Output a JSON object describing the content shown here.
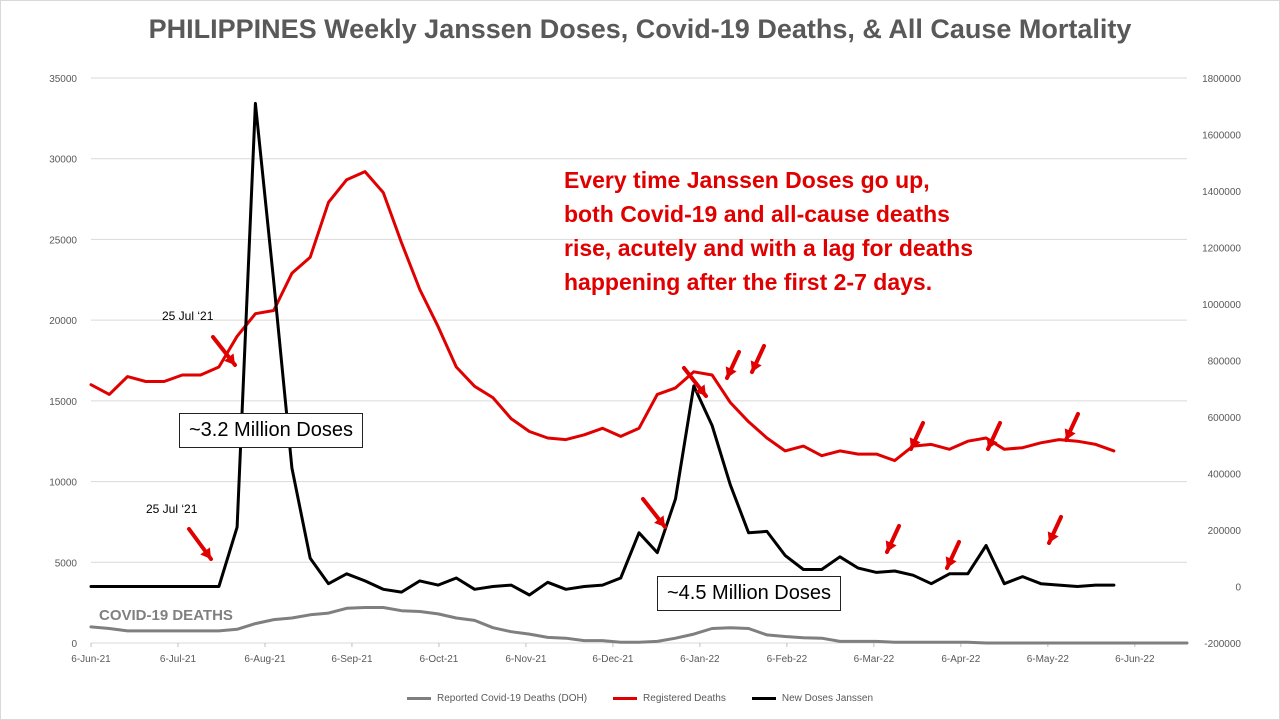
{
  "chart_data": {
    "type": "line",
    "title": "PHILIPPINES Weekly Janssen Doses, Covid-19 Deaths, & All Cause Mortality",
    "y_left": {
      "lim": [
        0,
        35000
      ],
      "ticks": [
        "0",
        "5000",
        "10000",
        "15000",
        "20000",
        "25000",
        "30000",
        "35000"
      ]
    },
    "y_right": {
      "lim": [
        -200000,
        1800000
      ],
      "ticks": [
        "-200000",
        "0",
        "200000",
        "400000",
        "600000",
        "800000",
        "1000000",
        "1200000",
        "1400000",
        "1600000",
        "1800000"
      ]
    },
    "x_tick_labels": [
      "6-Jun-21",
      "6-Jul-21",
      "6-Aug-21",
      "6-Sep-21",
      "6-Oct-21",
      "6-Nov-21",
      "6-Dec-21",
      "6-Jan-22",
      "6-Feb-22",
      "6-Mar-22",
      "6-Apr-22",
      "6-May-22",
      "6-Jun-22"
    ],
    "grid": "horizontal",
    "legend_position": "bottom",
    "series": [
      {
        "name": "Reported Covid-19 Deaths (DOH)",
        "color": "#7f7f7f",
        "axis": "left",
        "values": [
          1000,
          900,
          750,
          750,
          750,
          750,
          750,
          750,
          850,
          1200,
          1450,
          1550,
          1750,
          1850,
          2150,
          2200,
          2200,
          2000,
          1950,
          1800,
          1550,
          1400,
          950,
          700,
          550,
          350,
          300,
          150,
          150,
          50,
          50,
          100,
          300,
          550,
          900,
          950,
          900,
          500,
          400,
          330,
          300,
          100,
          100,
          100,
          50,
          50,
          50,
          50,
          50,
          0,
          0,
          0,
          0,
          0,
          0,
          0,
          0,
          0,
          0,
          0,
          0
        ]
      },
      {
        "name": "Registered Deaths",
        "color": "#e00000",
        "axis": "left",
        "values": [
          16000,
          15400,
          16500,
          16200,
          16200,
          16600,
          16600,
          17100,
          19000,
          20400,
          20600,
          22900,
          23900,
          27300,
          28700,
          29200,
          27900,
          24800,
          21900,
          19600,
          17100,
          15900,
          15200,
          13900,
          13100,
          12700,
          12600,
          12900,
          13300,
          12800,
          13300,
          15400,
          15800,
          16800,
          16600,
          14900,
          13700,
          12700,
          11900,
          12200,
          11600,
          11900,
          11700,
          11700,
          11300,
          12200,
          12300,
          12000,
          12500,
          12700,
          12000,
          12100,
          12400,
          12600,
          12500,
          12300,
          11900,
          null,
          null,
          null,
          null
        ]
      },
      {
        "name": "New Doses Janssen",
        "color": "#000000",
        "axis": "right",
        "values": [
          0,
          0,
          0,
          0,
          0,
          0,
          0,
          0,
          210000,
          1710000,
          1080000,
          420000,
          100000,
          10000,
          45000,
          20000,
          -10000,
          -20000,
          20000,
          5000,
          30000,
          -10000,
          0,
          5000,
          -30000,
          15000,
          -10000,
          0,
          5000,
          30000,
          190000,
          120000,
          310000,
          710000,
          570000,
          360000,
          190000,
          195000,
          110000,
          60000,
          60000,
          105000,
          65000,
          50000,
          55000,
          40000,
          10000,
          45000,
          45000,
          145000,
          10000,
          35000,
          10000,
          5000,
          0,
          5000,
          5000,
          null,
          null,
          null,
          null
        ]
      }
    ]
  },
  "annotations": {
    "main_text": [
      "Every time Janssen Doses go up,",
      "both Covid-19 and all-cause deaths",
      "rise, acutely and with a lag for deaths",
      "happening after the first 2-7 days."
    ],
    "callout_1": "~3.2 Million Doses",
    "callout_2": "~4.5 Million Doses",
    "date_label_upper": "25 Jul ‘21",
    "date_label_lower": "25 Jul ‘21",
    "covid_label": "COVID-19 DEATHS",
    "arrow_color": "#e00000"
  }
}
